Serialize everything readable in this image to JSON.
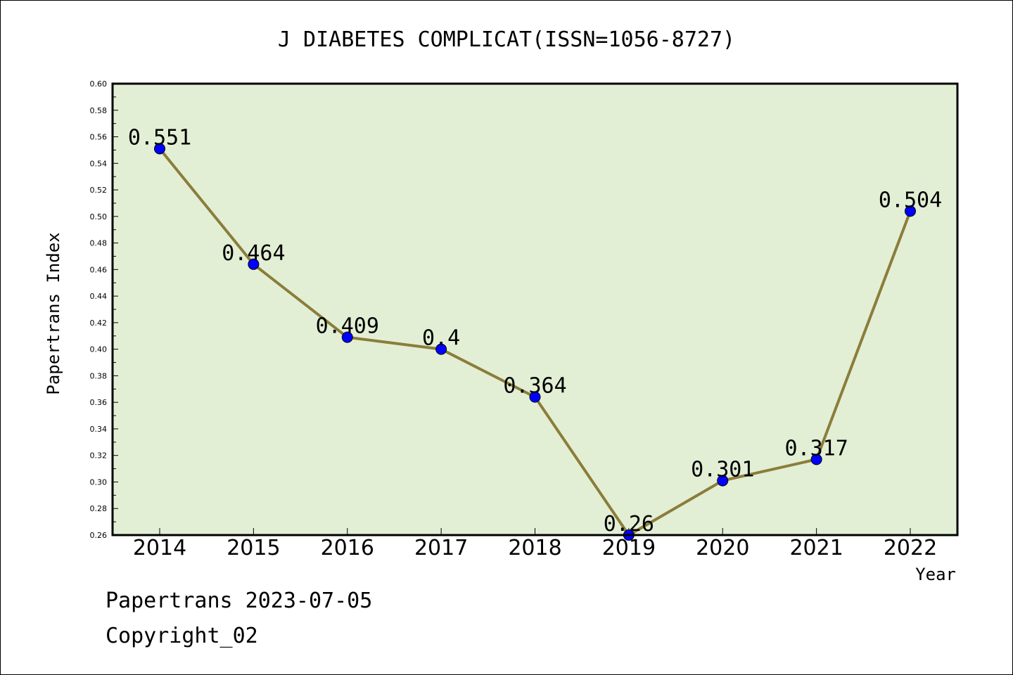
{
  "chart_data": {
    "type": "line",
    "title": "J DIABETES COMPLICAT(ISSN=1056-8727)",
    "xlabel": "Year",
    "ylabel": "Papertrans Index",
    "categories": [
      "2014",
      "2015",
      "2016",
      "2017",
      "2018",
      "2019",
      "2020",
      "2021",
      "2022"
    ],
    "values": [
      0.551,
      0.464,
      0.409,
      0.4,
      0.364,
      0.26,
      0.301,
      0.317,
      0.504
    ],
    "data_labels": [
      "0.551",
      "0.464",
      "0.409",
      "0.4",
      "0.364",
      "0.26",
      "0.301",
      "0.317",
      "0.504"
    ],
    "ylim": [
      0.26,
      0.6
    ],
    "yticks": [
      "0.26",
      "0.28",
      "0.30",
      "0.32",
      "0.34",
      "0.36",
      "0.38",
      "0.40",
      "0.42",
      "0.44",
      "0.46",
      "0.48",
      "0.50",
      "0.52",
      "0.54",
      "0.56",
      "0.58",
      "0.60"
    ],
    "grid": false,
    "colors": {
      "plot_background": "#e2efd5",
      "line": "#8b7d3a",
      "marker": "#0000ff"
    }
  },
  "footer": {
    "line1": "Papertrans 2023-07-05",
    "line2": "Copyright_02"
  }
}
